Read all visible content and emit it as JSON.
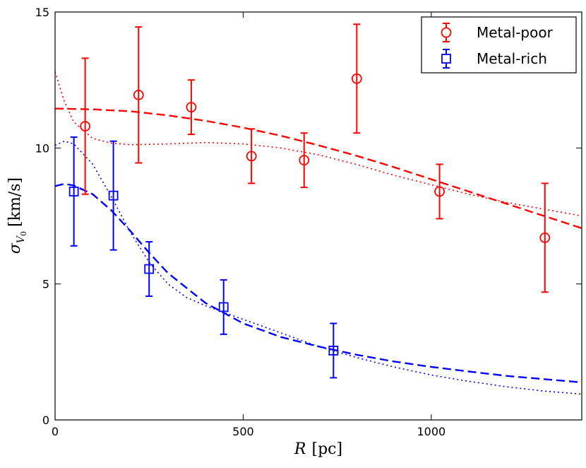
{
  "chart_data": {
    "type": "scatter",
    "title": "",
    "xlabel": {
      "var": "R",
      "unit": "[pc]"
    },
    "ylabel": {
      "var": "σ",
      "sub": "V",
      "subsub": "0",
      "unit": "[km/s]"
    },
    "xlim": [
      0,
      1400
    ],
    "ylim": [
      0,
      15
    ],
    "xticks": [
      0,
      500,
      1000
    ],
    "xtick_labels": [
      "0",
      "500",
      "1000"
    ],
    "yticks": [
      0,
      5,
      10,
      15
    ],
    "ytick_labels": [
      "0",
      "5",
      "10",
      "15"
    ],
    "grid": false,
    "legend_position": "top-right",
    "series": [
      {
        "name": "Metal-poor",
        "color": "#ff0000",
        "marker": "circle",
        "points": [
          {
            "x": 80,
            "y": 10.8,
            "err": 2.5
          },
          {
            "x": 222,
            "y": 11.95,
            "err": 2.5
          },
          {
            "x": 362,
            "y": 11.5,
            "err": 1.0
          },
          {
            "x": 522,
            "y": 9.7,
            "err": 1.0
          },
          {
            "x": 662,
            "y": 9.55,
            "err": 1.0
          },
          {
            "x": 802,
            "y": 12.55,
            "err": 2.0
          },
          {
            "x": 1022,
            "y": 8.4,
            "err": 1.0
          },
          {
            "x": 1302,
            "y": 6.7,
            "err": 2.0
          }
        ],
        "dashed_model": [
          [
            0,
            11.45
          ],
          [
            100,
            11.42
          ],
          [
            200,
            11.35
          ],
          [
            300,
            11.2
          ],
          [
            400,
            11.0
          ],
          [
            500,
            10.75
          ],
          [
            600,
            10.45
          ],
          [
            700,
            10.1
          ],
          [
            800,
            9.72
          ],
          [
            900,
            9.3
          ],
          [
            1000,
            8.85
          ],
          [
            1100,
            8.4
          ],
          [
            1200,
            7.95
          ],
          [
            1300,
            7.5
          ],
          [
            1400,
            7.05
          ]
        ],
        "dotted_model": [
          [
            0,
            12.8
          ],
          [
            25,
            11.7
          ],
          [
            50,
            10.95
          ],
          [
            100,
            10.35
          ],
          [
            150,
            10.18
          ],
          [
            200,
            10.12
          ],
          [
            300,
            10.15
          ],
          [
            400,
            10.2
          ],
          [
            500,
            10.15
          ],
          [
            600,
            10.0
          ],
          [
            700,
            9.75
          ],
          [
            800,
            9.4
          ],
          [
            900,
            9.0
          ],
          [
            1000,
            8.65
          ],
          [
            1100,
            8.3
          ],
          [
            1200,
            8.0
          ],
          [
            1300,
            7.75
          ],
          [
            1400,
            7.5
          ]
        ]
      },
      {
        "name": "Metal-rich",
        "color": "#0000ff",
        "marker": "square",
        "points": [
          {
            "x": 50,
            "y": 8.4,
            "err": 2.0
          },
          {
            "x": 155,
            "y": 8.25,
            "err": 2.0
          },
          {
            "x": 250,
            "y": 5.55,
            "err": 1.0
          },
          {
            "x": 448,
            "y": 4.15,
            "err": 1.0
          },
          {
            "x": 740,
            "y": 2.55,
            "err": 1.0
          }
        ],
        "dashed_model": [
          [
            0,
            8.6
          ],
          [
            25,
            8.68
          ],
          [
            50,
            8.62
          ],
          [
            100,
            8.3
          ],
          [
            150,
            7.7
          ],
          [
            200,
            6.95
          ],
          [
            250,
            6.15
          ],
          [
            300,
            5.4
          ],
          [
            400,
            4.3
          ],
          [
            500,
            3.55
          ],
          [
            600,
            3.05
          ],
          [
            700,
            2.7
          ],
          [
            800,
            2.4
          ],
          [
            900,
            2.15
          ],
          [
            1000,
            1.95
          ],
          [
            1100,
            1.78
          ],
          [
            1200,
            1.62
          ],
          [
            1300,
            1.5
          ],
          [
            1400,
            1.38
          ]
        ],
        "dotted_model": [
          [
            0,
            10.1
          ],
          [
            25,
            10.25
          ],
          [
            50,
            10.15
          ],
          [
            100,
            9.4
          ],
          [
            150,
            8.2
          ],
          [
            200,
            6.9
          ],
          [
            250,
            5.8
          ],
          [
            300,
            5.0
          ],
          [
            350,
            4.5
          ],
          [
            400,
            4.2
          ],
          [
            450,
            3.95
          ],
          [
            500,
            3.7
          ],
          [
            600,
            3.2
          ],
          [
            700,
            2.7
          ],
          [
            800,
            2.3
          ],
          [
            900,
            1.95
          ],
          [
            1000,
            1.65
          ],
          [
            1100,
            1.42
          ],
          [
            1200,
            1.22
          ],
          [
            1300,
            1.06
          ],
          [
            1400,
            0.95
          ]
        ]
      }
    ]
  }
}
